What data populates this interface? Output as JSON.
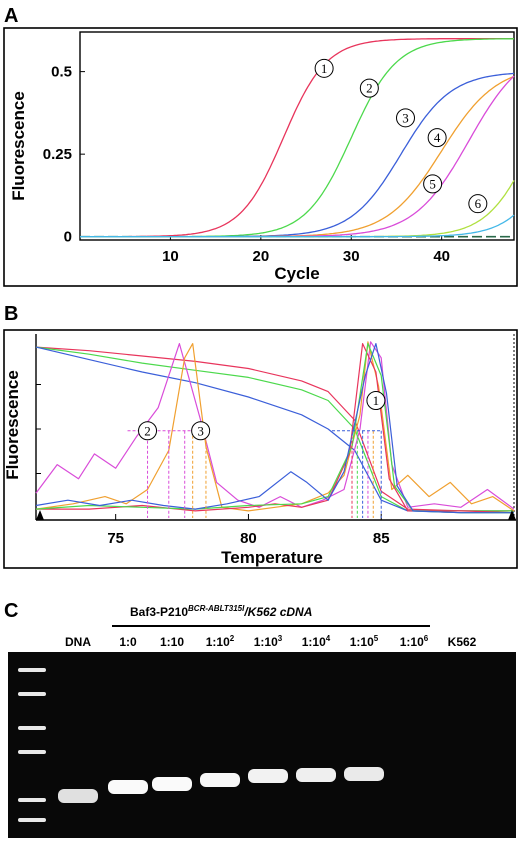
{
  "panels": {
    "A": {
      "letter": "A"
    },
    "B": {
      "letter": "B"
    },
    "C": {
      "letter": "C"
    }
  },
  "chart_data": [
    {
      "type": "line",
      "panel": "A",
      "title": "",
      "xlabel": "Cycle",
      "ylabel": "Fluorescence",
      "xlim": [
        0,
        48
      ],
      "ylim": [
        -0.01,
        0.62
      ],
      "xticks": [
        10,
        20,
        30,
        40
      ],
      "xtick_labels": [
        "10",
        "20",
        "30",
        "40"
      ],
      "yticks": [
        0,
        0.25,
        0.5
      ],
      "ytick_labels": [
        "0",
        "0.25",
        "0.5"
      ],
      "threshold": 0.0,
      "series": [
        {
          "marker": "1",
          "color": "#e8355c",
          "midpoint": 22.5,
          "k": 0.42,
          "plateau": 0.6,
          "label_at": [
            27,
            0.51
          ]
        },
        {
          "marker": "2",
          "color": "#4cd94c",
          "midpoint": 30.0,
          "k": 0.4,
          "plateau": 0.6,
          "label_at": [
            32,
            0.45
          ]
        },
        {
          "marker": "3",
          "color": "#3b5fd9",
          "midpoint": 35.5,
          "k": 0.36,
          "plateau": 0.5,
          "label_at": [
            36,
            0.36
          ]
        },
        {
          "marker": "4",
          "color": "#f0a030",
          "midpoint": 40.0,
          "k": 0.33,
          "plateau": 0.52,
          "label_at": [
            39.5,
            0.3
          ]
        },
        {
          "marker": "5",
          "color": "#d94cd9",
          "midpoint": 43.0,
          "k": 0.33,
          "plateau": 0.58,
          "label_at": [
            39,
            0.16
          ]
        },
        {
          "marker": "6",
          "color": "#b0e040",
          "midpoint": 50.0,
          "k": 0.4,
          "plateau": 0.55,
          "label_at": [
            44,
            0.1
          ]
        },
        {
          "marker": "",
          "color": "#44b8e8",
          "midpoint": 53.0,
          "k": 0.4,
          "plateau": 0.55,
          "label_at": null
        }
      ]
    },
    {
      "type": "line",
      "panel": "B",
      "title": "",
      "xlabel": "Temperature",
      "ylabel": "Fluorescence",
      "xlim": [
        72,
        90
      ],
      "ylim": [
        0,
        1
      ],
      "xticks": [
        75,
        80,
        85
      ],
      "xtick_labels": [
        "75",
        "80",
        "85"
      ],
      "markers": [
        {
          "text": "1",
          "at": [
            84.8,
            0.66
          ]
        },
        {
          "text": "2",
          "at": [
            76.2,
            0.49
          ]
        },
        {
          "text": "3",
          "at": [
            78.2,
            0.49
          ]
        }
      ],
      "series": [
        {
          "kind": "melt",
          "color": "#e8355c",
          "values": [
            [
              72,
              0.96
            ],
            [
              74,
              0.94
            ],
            [
              76,
              0.91
            ],
            [
              78,
              0.88
            ],
            [
              80,
              0.84
            ],
            [
              82,
              0.77
            ],
            [
              83,
              0.71
            ],
            [
              84,
              0.55
            ],
            [
              85,
              0.15
            ],
            [
              86,
              0.05
            ],
            [
              88,
              0.04
            ],
            [
              90,
              0.04
            ]
          ]
        },
        {
          "kind": "melt",
          "color": "#4cd94c",
          "values": [
            [
              72,
              0.96
            ],
            [
              74,
              0.92
            ],
            [
              76,
              0.87
            ],
            [
              78,
              0.83
            ],
            [
              80,
              0.79
            ],
            [
              82,
              0.72
            ],
            [
              83,
              0.66
            ],
            [
              84,
              0.5
            ],
            [
              85,
              0.12
            ],
            [
              86,
              0.04
            ],
            [
              88,
              0.04
            ],
            [
              90,
              0.04
            ]
          ]
        },
        {
          "kind": "melt",
          "color": "#3b5fd9",
          "values": [
            [
              72,
              0.96
            ],
            [
              74,
              0.89
            ],
            [
              76,
              0.82
            ],
            [
              78,
              0.76
            ],
            [
              80,
              0.68
            ],
            [
              82,
              0.58
            ],
            [
              83,
              0.5
            ],
            [
              84,
              0.38
            ],
            [
              85,
              0.1
            ],
            [
              86,
              0.04
            ],
            [
              88,
              0.03
            ],
            [
              90,
              0.03
            ]
          ]
        },
        {
          "kind": "deriv",
          "color": "#d94cd9",
          "values": [
            [
              72,
              0.14
            ],
            [
              72.8,
              0.3
            ],
            [
              73.6,
              0.22
            ],
            [
              74.2,
              0.36
            ],
            [
              75,
              0.28
            ],
            [
              75.8,
              0.46
            ],
            [
              76.6,
              0.62
            ],
            [
              77.4,
              0.98
            ],
            [
              78.2,
              0.55
            ],
            [
              78.8,
              0.2
            ],
            [
              79.6,
              0.1
            ],
            [
              80.4,
              0.06
            ],
            [
              81.2,
              0.12
            ],
            [
              82,
              0.06
            ],
            [
              82.8,
              0.1
            ],
            [
              83.6,
              0.16
            ],
            [
              84.2,
              0.5
            ],
            [
              84.6,
              0.99
            ],
            [
              85.0,
              0.9
            ],
            [
              85.4,
              0.3
            ],
            [
              86,
              0.06
            ],
            [
              87,
              0.08
            ],
            [
              88,
              0.06
            ],
            [
              89,
              0.16
            ],
            [
              90,
              0.05
            ]
          ]
        },
        {
          "kind": "deriv",
          "color": "#f0a030",
          "values": [
            [
              72,
              0.05
            ],
            [
              73.4,
              0.08
            ],
            [
              74.6,
              0.12
            ],
            [
              75.4,
              0.08
            ],
            [
              76.2,
              0.16
            ],
            [
              77,
              0.38
            ],
            [
              77.6,
              0.9
            ],
            [
              77.9,
              0.98
            ],
            [
              78.4,
              0.4
            ],
            [
              79,
              0.06
            ],
            [
              80,
              0.04
            ],
            [
              81,
              0.06
            ],
            [
              82,
              0.08
            ],
            [
              83,
              0.14
            ],
            [
              83.6,
              0.24
            ],
            [
              84.2,
              0.58
            ],
            [
              84.5,
              0.99
            ],
            [
              84.9,
              0.74
            ],
            [
              85.4,
              0.16
            ],
            [
              86,
              0.24
            ],
            [
              86.8,
              0.12
            ],
            [
              87.6,
              0.2
            ],
            [
              88.4,
              0.08
            ],
            [
              89.2,
              0.12
            ],
            [
              90,
              0.04
            ]
          ]
        },
        {
          "kind": "deriv",
          "color": "#e8355c",
          "values": [
            [
              72,
              0.05
            ],
            [
              74,
              0.05
            ],
            [
              76,
              0.07
            ],
            [
              78,
              0.04
            ],
            [
              80,
              0.06
            ],
            [
              81,
              0.08
            ],
            [
              82,
              0.06
            ],
            [
              83,
              0.1
            ],
            [
              83.8,
              0.36
            ],
            [
              84.3,
              0.98
            ],
            [
              84.8,
              0.82
            ],
            [
              85.3,
              0.22
            ],
            [
              86,
              0.04
            ],
            [
              88,
              0.04
            ],
            [
              90,
              0.03
            ]
          ]
        },
        {
          "kind": "deriv",
          "color": "#4cd94c",
          "values": [
            [
              72,
              0.05
            ],
            [
              74,
              0.07
            ],
            [
              76,
              0.06
            ],
            [
              78,
              0.05
            ],
            [
              80,
              0.07
            ],
            [
              82,
              0.08
            ],
            [
              83,
              0.12
            ],
            [
              83.9,
              0.4
            ],
            [
              84.5,
              0.98
            ],
            [
              85.0,
              0.8
            ],
            [
              85.5,
              0.18
            ],
            [
              86.2,
              0.04
            ],
            [
              88,
              0.03
            ],
            [
              90,
              0.03
            ]
          ]
        },
        {
          "kind": "deriv",
          "color": "#3b5fd9",
          "values": [
            [
              72,
              0.07
            ],
            [
              73.2,
              0.1
            ],
            [
              74.4,
              0.07
            ],
            [
              75.6,
              0.1
            ],
            [
              76.8,
              0.07
            ],
            [
              78,
              0.05
            ],
            [
              79.2,
              0.08
            ],
            [
              80.4,
              0.12
            ],
            [
              81.6,
              0.26
            ],
            [
              82.2,
              0.2
            ],
            [
              83,
              0.1
            ],
            [
              83.6,
              0.26
            ],
            [
              84.4,
              0.8
            ],
            [
              84.8,
              0.98
            ],
            [
              85.2,
              0.7
            ],
            [
              85.6,
              0.18
            ],
            [
              86.2,
              0.04
            ],
            [
              88,
              0.03
            ],
            [
              90,
              0.03
            ]
          ]
        }
      ],
      "dashed_x": [
        {
          "x": 76.2,
          "color": "#d94cd9",
          "y_top": 0.49
        },
        {
          "x": 77.0,
          "color": "#d94cd9",
          "y_top": 0.49
        },
        {
          "x": 77.6,
          "color": "#d94cd9",
          "y_top": 0.49
        },
        {
          "x": 77.9,
          "color": "#f0a030",
          "y_top": 0.49
        },
        {
          "x": 78.4,
          "color": "#f0a030",
          "y_top": 0.49
        },
        {
          "x": 83.9,
          "color": "#e8355c",
          "y_top": 0.49
        },
        {
          "x": 84.1,
          "color": "#4cd94c",
          "y_top": 0.49
        },
        {
          "x": 84.3,
          "color": "#3b5fd9",
          "y_top": 0.49
        },
        {
          "x": 84.5,
          "color": "#d94cd9",
          "y_top": 0.49
        },
        {
          "x": 84.7,
          "color": "#f0a030",
          "y_top": 0.49
        },
        {
          "x": 85.0,
          "color": "#3b5fd9",
          "y_top": 0.49
        }
      ],
      "dashed_y": [
        {
          "y": 0.49,
          "x_from": 76.2,
          "x_to": 78.4,
          "color": "#d94cd9"
        },
        {
          "y": 0.49,
          "x_from": 83.9,
          "x_to": 85.0,
          "color": "#3b5fd9"
        }
      ]
    },
    {
      "type": "gel",
      "panel": "C",
      "header": "Baf3-P210",
      "header_sup": "BCR-ABLT315I",
      "header_suffix": "/K562 cDNA",
      "lanes": [
        {
          "label_base": "DNA",
          "label_sup": "",
          "band": 0.7
        },
        {
          "label_base": "1:0",
          "label_sup": "",
          "band": 0.95
        },
        {
          "label_base": "1:10",
          "label_sup": "",
          "band": 0.95
        },
        {
          "label_base": "1:10",
          "label_sup": "2",
          "band": 0.92
        },
        {
          "label_base": "1:10",
          "label_sup": "3",
          "band": 0.88
        },
        {
          "label_base": "1:10",
          "label_sup": "4",
          "band": 0.85
        },
        {
          "label_base": "1:10",
          "label_sup": "5",
          "band": 0.8
        },
        {
          "label_base": "1:10",
          "label_sup": "6",
          "band": 0.0
        },
        {
          "label_base": "K562",
          "label_sup": "",
          "band": 0.0
        }
      ]
    }
  ]
}
